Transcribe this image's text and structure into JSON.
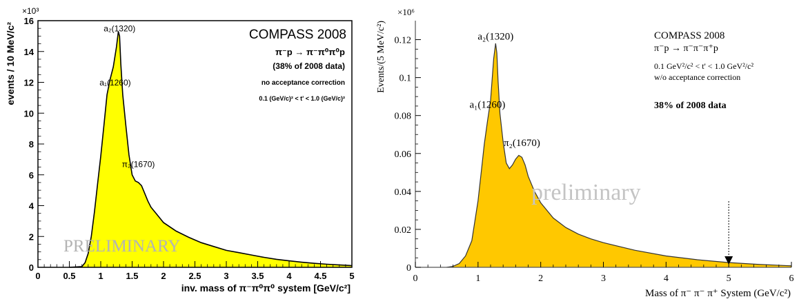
{
  "chart_data": [
    {
      "type": "area",
      "fill_color": "#ffff00",
      "line_color": "#000000",
      "xlabel": "inv. mass of π⁻π⁰π⁰ system [GeV/c²]",
      "ylabel": "events / 10 MeV/c²",
      "exponent_label": "×10³",
      "xlim": [
        0,
        5
      ],
      "ylim": [
        0,
        16000
      ],
      "xticks": [
        0,
        0.5,
        1,
        1.5,
        2,
        2.5,
        3,
        3.5,
        4,
        4.5,
        5
      ],
      "xtick_labels": [
        "0",
        "0.5",
        "1",
        "1.5",
        "2",
        "2.5",
        "3",
        "3.5",
        "4",
        "4.5",
        "5"
      ],
      "yticks": [
        0,
        2000,
        4000,
        6000,
        8000,
        10000,
        12000,
        14000,
        16000
      ],
      "ytick_labels": [
        "0",
        "2",
        "4",
        "6",
        "8",
        "10",
        "12",
        "14",
        "16"
      ],
      "x": [
        0.5,
        0.7,
        0.75,
        0.8,
        0.85,
        0.9,
        0.95,
        1.0,
        1.05,
        1.1,
        1.15,
        1.2,
        1.25,
        1.28,
        1.3,
        1.32,
        1.35,
        1.4,
        1.45,
        1.5,
        1.55,
        1.6,
        1.65,
        1.7,
        1.75,
        1.8,
        1.9,
        2.0,
        2.2,
        2.4,
        2.6,
        2.8,
        3.0,
        3.2,
        3.4,
        3.6,
        3.8,
        4.0,
        4.2,
        4.4,
        4.6,
        4.8,
        5.0
      ],
      "y": [
        0,
        50,
        300,
        900,
        2000,
        3600,
        5400,
        7200,
        9200,
        11200,
        12200,
        13000,
        14300,
        15300,
        15000,
        13200,
        11200,
        9200,
        7300,
        6000,
        5600,
        5500,
        5300,
        4800,
        4300,
        3900,
        3400,
        2900,
        2350,
        1950,
        1600,
        1350,
        1100,
        950,
        800,
        650,
        520,
        420,
        330,
        260,
        200,
        150,
        110
      ],
      "experiment_label": "COMPASS 2008",
      "reaction_label": "π⁻p → π⁻π⁰π⁰p",
      "data_fraction_label": "(38% of 2008 data)",
      "correction_label": "no acceptance correction",
      "cut_label": "0.1 (GeV/c)² < t' < 1.0 (GeV/c)²",
      "watermark": "PRELIMINARY",
      "annotations": [
        {
          "text": "a₁(1260)",
          "x": 1.23,
          "y": 11800
        },
        {
          "text": "a₂(1320)",
          "x": 1.3,
          "y": 15300
        },
        {
          "text": "π₂(1670)",
          "x": 1.6,
          "y": 6500
        }
      ]
    },
    {
      "type": "area",
      "fill_color": "#ffc800",
      "line_color": "#333333",
      "xlabel": "Mass of π⁻ π⁻ π⁺ System (GeV/c²)",
      "ylabel": "Events/(5 MeV/c²)",
      "exponent_label": "×10⁶",
      "xlim": [
        0,
        6
      ],
      "ylim": [
        0,
        0.13
      ],
      "xticks": [
        0,
        1,
        2,
        3,
        4,
        5,
        6
      ],
      "xtick_labels": [
        "0",
        "1",
        "2",
        "3",
        "4",
        "5",
        "6"
      ],
      "yticks": [
        0,
        0.02,
        0.04,
        0.06,
        0.08,
        0.1,
        0.12
      ],
      "ytick_labels": [
        "0",
        "0.02",
        "0.04",
        "0.06",
        "0.08",
        "0.1",
        "0.12"
      ],
      "x": [
        0.5,
        0.6,
        0.7,
        0.8,
        0.9,
        1.0,
        1.05,
        1.1,
        1.15,
        1.2,
        1.25,
        1.28,
        1.3,
        1.32,
        1.35,
        1.4,
        1.45,
        1.5,
        1.55,
        1.6,
        1.65,
        1.7,
        1.75,
        1.8,
        1.9,
        2.0,
        2.2,
        2.4,
        2.6,
        2.8,
        3.0,
        3.5,
        4.0,
        4.5,
        5.0,
        5.5,
        6.0
      ],
      "y": [
        0,
        0.0005,
        0.002,
        0.006,
        0.014,
        0.035,
        0.05,
        0.065,
        0.077,
        0.088,
        0.11,
        0.118,
        0.113,
        0.098,
        0.081,
        0.066,
        0.055,
        0.052,
        0.054,
        0.057,
        0.059,
        0.058,
        0.054,
        0.048,
        0.04,
        0.034,
        0.026,
        0.021,
        0.0175,
        0.015,
        0.013,
        0.009,
        0.006,
        0.004,
        0.0025,
        0.0015,
        0.0008
      ],
      "experiment_label": "COMPASS 2008",
      "reaction_label": "π⁻p → π⁻π⁻π⁺p",
      "cut_label": "0.1 GeV²/c² < t' < 1.0 GeV²/c²",
      "correction_label": "w/o acceptance correction",
      "data_fraction_label": "38% of 2008 data",
      "watermark": "preliminary",
      "arrow_x": 5.0,
      "annotations": [
        {
          "text": "a₁(1260)",
          "x": 1.15,
          "y": 0.084
        },
        {
          "text": "a₂(1320)",
          "x": 1.28,
          "y": 0.12
        },
        {
          "text": "π₂(1670)",
          "x": 1.7,
          "y": 0.064
        }
      ]
    }
  ]
}
